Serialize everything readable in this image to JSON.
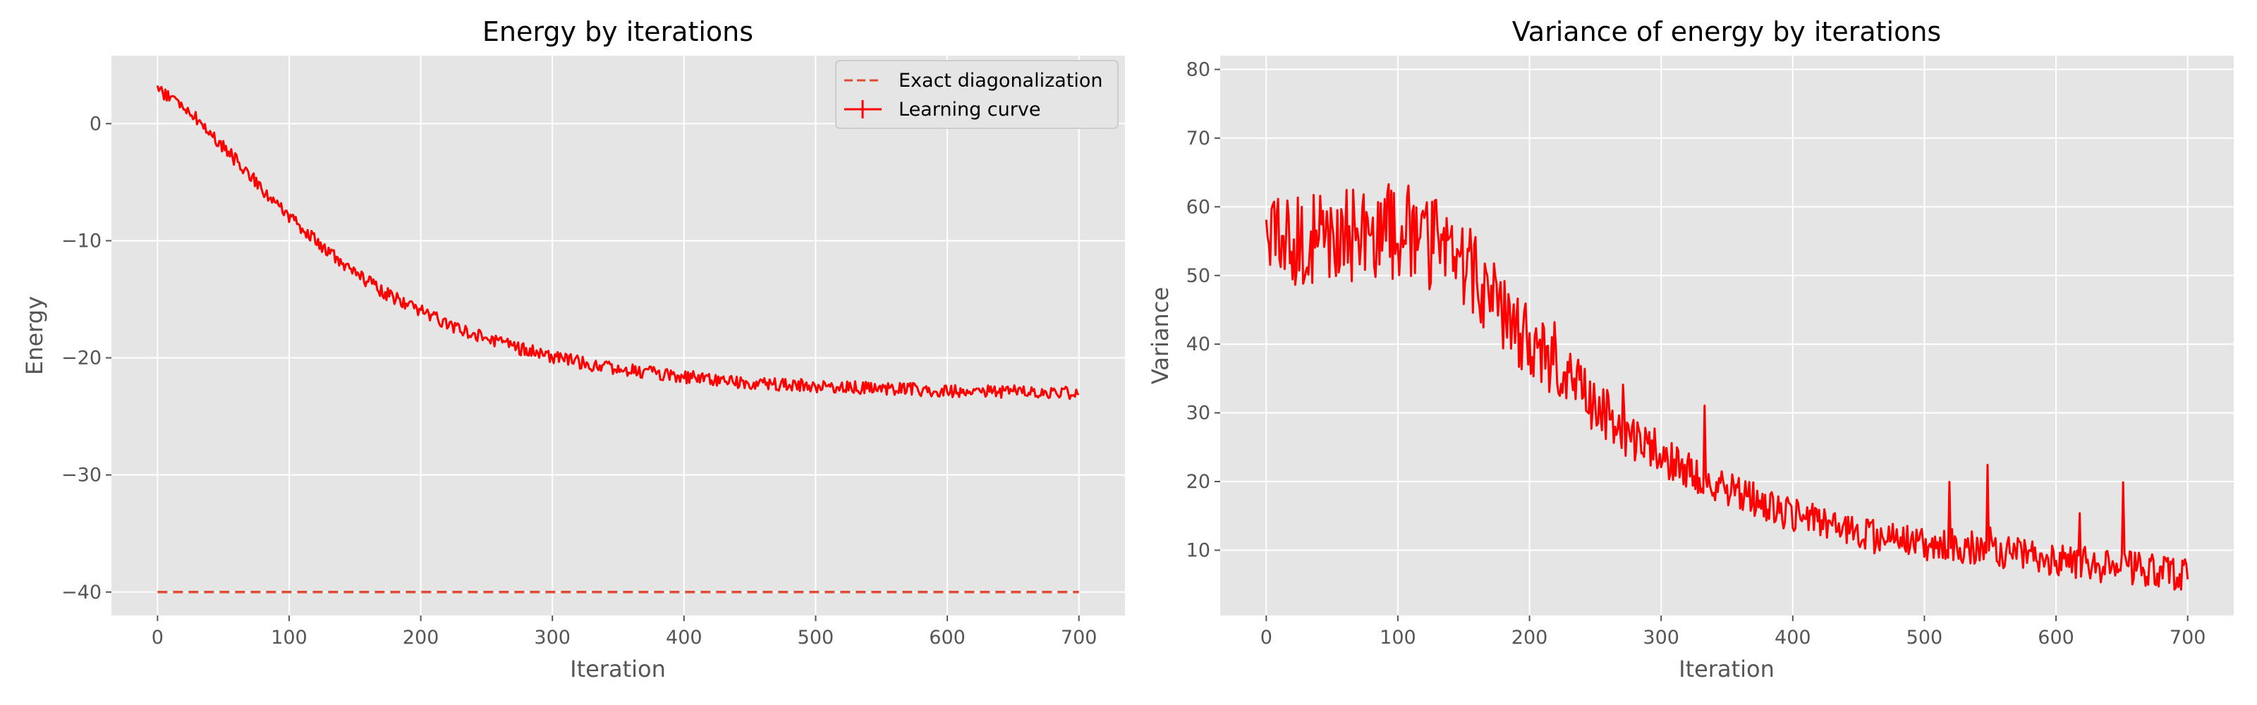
{
  "chart_data": [
    {
      "type": "line",
      "title": "Energy by iterations",
      "xlabel": "Iteration",
      "ylabel": "Energy",
      "xlim": [
        -35,
        735
      ],
      "ylim": [
        -42,
        5.8
      ],
      "xticks": [
        0,
        100,
        200,
        300,
        400,
        500,
        600,
        700
      ],
      "xtick_labels": [
        "0",
        "100",
        "200",
        "300",
        "400",
        "500",
        "600",
        "700"
      ],
      "yticks": [
        0,
        -10,
        -20,
        -30,
        -40
      ],
      "ytick_labels": [
        "0",
        "−10",
        "−20",
        "−30",
        "−40"
      ],
      "grid": true,
      "legend": {
        "placement": "top-right",
        "entries": [
          "Exact diagonalization",
          "Learning curve"
        ]
      },
      "series": [
        {
          "name": "Exact diagonalization",
          "style": "dashed",
          "color": "#e24a33",
          "x": [
            0,
            700
          ],
          "y": [
            -40,
            -40
          ]
        },
        {
          "name": "Learning curve",
          "style": "solid",
          "color": "#ff0000",
          "noise": 0.35,
          "x": [
            0,
            25,
            50,
            75,
            100,
            125,
            150,
            175,
            200,
            225,
            250,
            275,
            300,
            325,
            350,
            375,
            400,
            425,
            450,
            475,
            500,
            525,
            550,
            575,
            600,
            625,
            650,
            675,
            700
          ],
          "y": [
            3,
            1,
            -2,
            -5,
            -8,
            -10.5,
            -12.8,
            -14.6,
            -16,
            -17.3,
            -18.3,
            -19.2,
            -19.9,
            -20.5,
            -20.9,
            -21.3,
            -21.6,
            -21.9,
            -22.1,
            -22.3,
            -22.4,
            -22.5,
            -22.6,
            -22.7,
            -22.8,
            -22.9,
            -22.9,
            -23,
            -23
          ]
        }
      ]
    },
    {
      "type": "line",
      "title": "Variance of energy by iterations",
      "xlabel": "Iteration",
      "ylabel": "Variance",
      "xlim": [
        -35,
        735
      ],
      "ylim": [
        0.5,
        82
      ],
      "xticks": [
        0,
        100,
        200,
        300,
        400,
        500,
        600,
        700
      ],
      "xtick_labels": [
        "0",
        "100",
        "200",
        "300",
        "400",
        "500",
        "600",
        "700"
      ],
      "yticks": [
        10,
        20,
        30,
        40,
        50,
        60,
        70,
        80
      ],
      "ytick_labels": [
        "10",
        "20",
        "30",
        "40",
        "50",
        "60",
        "70",
        "80"
      ],
      "grid": true,
      "series": [
        {
          "style": "solid",
          "color": "#ff0000",
          "noise": 4.5,
          "x": [
            0,
            25,
            50,
            75,
            100,
            125,
            150,
            175,
            200,
            225,
            250,
            275,
            300,
            325,
            350,
            375,
            400,
            425,
            450,
            475,
            500,
            525,
            550,
            575,
            600,
            625,
            650,
            675,
            700
          ],
          "y": [
            55,
            55,
            55,
            56,
            56,
            55,
            52,
            46,
            40,
            36,
            31,
            27,
            24,
            21,
            19,
            17,
            15,
            14,
            12.5,
            11.5,
            11,
            10.5,
            10,
            9.5,
            8.5,
            8,
            7.5,
            7,
            6.5
          ]
        }
      ]
    }
  ]
}
